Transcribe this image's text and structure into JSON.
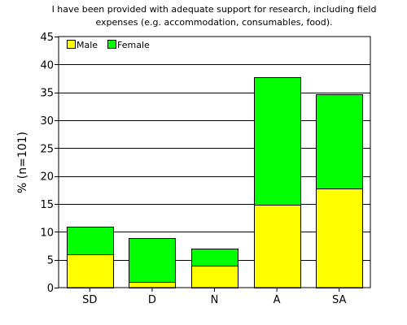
{
  "chart_data": {
    "type": "bar",
    "stacked": true,
    "title_lines": [
      "I have been provided with adequate support for research, including field",
      "expenses (e.g. accommodation, consumables, food)."
    ],
    "xlabel": "",
    "ylabel": "% (n=101)",
    "ylim": [
      0,
      45
    ],
    "yticks": [
      0,
      5,
      10,
      15,
      20,
      25,
      30,
      35,
      40,
      45
    ],
    "grid": true,
    "legend_position": "top-left",
    "categories": [
      "SD",
      "D",
      "N",
      "A",
      "SA"
    ],
    "series": [
      {
        "name": "Male",
        "color": "#ffff00",
        "values": [
          5.9,
          1.0,
          4.0,
          14.9,
          17.8
        ]
      },
      {
        "name": "Female",
        "color": "#00ff00",
        "values": [
          5.0,
          7.9,
          3.0,
          22.8,
          16.8
        ]
      }
    ]
  }
}
